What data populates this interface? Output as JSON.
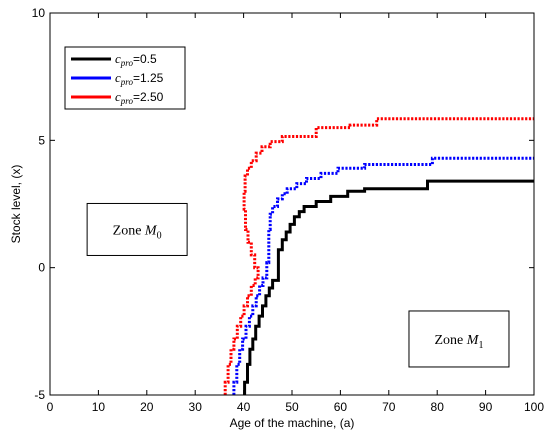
{
  "chart_data": {
    "type": "line",
    "xlabel": "Age of the machine, (a)",
    "ylabel": "Stock level, (x)",
    "xlim": [
      0,
      100
    ],
    "ylim": [
      -5,
      10
    ],
    "xticks": [
      0,
      10,
      20,
      30,
      40,
      50,
      60,
      70,
      80,
      90,
      100
    ],
    "yticks": [
      -5,
      0,
      5,
      10
    ],
    "grid": false,
    "legend_position": "top-left",
    "series": [
      {
        "name": "=0.5",
        "legend_symbol": "c",
        "legend_sub": "pro",
        "legend_suffix": "=0.5",
        "color": "#000000",
        "dash": "solid",
        "points": [
          [
            40.2,
            -5.0
          ],
          [
            40.2,
            -4.5
          ],
          [
            40.8,
            -4.5
          ],
          [
            40.8,
            -3.8
          ],
          [
            41.3,
            -3.8
          ],
          [
            41.3,
            -3.2
          ],
          [
            41.9,
            -3.2
          ],
          [
            41.9,
            -2.8
          ],
          [
            42.5,
            -2.8
          ],
          [
            42.5,
            -2.3
          ],
          [
            43.2,
            -2.3
          ],
          [
            43.2,
            -1.9
          ],
          [
            43.9,
            -1.9
          ],
          [
            43.9,
            -1.5
          ],
          [
            44.6,
            -1.5
          ],
          [
            44.6,
            -1.1
          ],
          [
            45.3,
            -1.1
          ],
          [
            45.3,
            -0.8
          ],
          [
            46.0,
            -0.8
          ],
          [
            46.0,
            -0.5
          ],
          [
            47.2,
            -0.5
          ],
          [
            47.2,
            0.7
          ],
          [
            48.0,
            0.7
          ],
          [
            48.0,
            1.1
          ],
          [
            48.8,
            1.1
          ],
          [
            48.8,
            1.4
          ],
          [
            49.6,
            1.4
          ],
          [
            49.6,
            1.7
          ],
          [
            50.5,
            1.7
          ],
          [
            50.5,
            2.0
          ],
          [
            51.5,
            2.0
          ],
          [
            51.5,
            2.2
          ],
          [
            52.5,
            2.2
          ],
          [
            52.5,
            2.4
          ],
          [
            55.0,
            2.4
          ],
          [
            55.0,
            2.6
          ],
          [
            58.0,
            2.6
          ],
          [
            58.0,
            2.8
          ],
          [
            61.5,
            2.8
          ],
          [
            61.5,
            3.0
          ],
          [
            65.0,
            3.0
          ],
          [
            65.0,
            3.1
          ],
          [
            78.0,
            3.1
          ],
          [
            78.0,
            3.4
          ],
          [
            100.0,
            3.4
          ]
        ]
      },
      {
        "name": "=1.25",
        "legend_symbol": "c",
        "legend_sub": "pro",
        "legend_suffix": "=1.25",
        "color": "#0000ff",
        "dash": "dotted",
        "points": [
          [
            38.0,
            -5.0
          ],
          [
            38.0,
            -4.5
          ],
          [
            38.6,
            -4.5
          ],
          [
            38.6,
            -3.8
          ],
          [
            39.2,
            -3.8
          ],
          [
            39.2,
            -3.2
          ],
          [
            39.8,
            -3.2
          ],
          [
            39.8,
            -2.8
          ],
          [
            40.5,
            -2.8
          ],
          [
            40.5,
            -2.3
          ],
          [
            41.2,
            -2.3
          ],
          [
            41.2,
            -1.9
          ],
          [
            41.9,
            -1.9
          ],
          [
            41.9,
            -1.5
          ],
          [
            42.6,
            -1.5
          ],
          [
            42.6,
            -1.1
          ],
          [
            43.3,
            -1.1
          ],
          [
            43.3,
            -0.7
          ],
          [
            44.0,
            -0.7
          ],
          [
            44.0,
            -0.4
          ],
          [
            44.8,
            -0.4
          ],
          [
            44.8,
            0.2
          ],
          [
            45.2,
            0.2
          ],
          [
            45.2,
            1.5
          ],
          [
            45.5,
            1.5
          ],
          [
            45.5,
            2.1
          ],
          [
            46.0,
            2.1
          ],
          [
            46.0,
            2.4
          ],
          [
            47.0,
            2.4
          ],
          [
            47.0,
            2.7
          ],
          [
            48.0,
            2.7
          ],
          [
            48.0,
            2.9
          ],
          [
            49.0,
            2.9
          ],
          [
            49.0,
            3.1
          ],
          [
            51.0,
            3.1
          ],
          [
            51.0,
            3.3
          ],
          [
            53.0,
            3.3
          ],
          [
            53.0,
            3.5
          ],
          [
            56.0,
            3.5
          ],
          [
            56.0,
            3.7
          ],
          [
            59.5,
            3.7
          ],
          [
            59.5,
            3.9
          ],
          [
            65.0,
            3.9
          ],
          [
            65.0,
            4.05
          ],
          [
            79.0,
            4.05
          ],
          [
            79.0,
            4.3
          ],
          [
            100.0,
            4.3
          ]
        ]
      },
      {
        "name": "=2.50",
        "legend_symbol": "c",
        "legend_sub": "pro",
        "legend_suffix": "=2.50",
        "color": "#ff0000",
        "dash": "dotted",
        "points": [
          [
            36.2,
            -5.0
          ],
          [
            36.2,
            -4.5
          ],
          [
            36.8,
            -4.5
          ],
          [
            36.8,
            -3.8
          ],
          [
            37.4,
            -3.8
          ],
          [
            37.4,
            -3.2
          ],
          [
            38.0,
            -3.2
          ],
          [
            38.0,
            -2.8
          ],
          [
            38.7,
            -2.8
          ],
          [
            38.7,
            -2.3
          ],
          [
            39.4,
            -2.3
          ],
          [
            39.4,
            -1.9
          ],
          [
            40.1,
            -1.9
          ],
          [
            40.1,
            -1.5
          ],
          [
            40.8,
            -1.5
          ],
          [
            40.8,
            -1.1
          ],
          [
            41.6,
            -1.1
          ],
          [
            41.6,
            -0.7
          ],
          [
            42.4,
            -0.7
          ],
          [
            42.4,
            -0.4
          ],
          [
            43.0,
            -0.4
          ],
          [
            43.0,
            0.0
          ],
          [
            42.3,
            0.0
          ],
          [
            42.3,
            0.5
          ],
          [
            41.6,
            0.5
          ],
          [
            41.6,
            1.0
          ],
          [
            40.9,
            1.0
          ],
          [
            40.9,
            1.5
          ],
          [
            40.4,
            1.5
          ],
          [
            40.4,
            2.3
          ],
          [
            40.1,
            2.3
          ],
          [
            40.1,
            3.0
          ],
          [
            40.3,
            3.0
          ],
          [
            40.3,
            3.6
          ],
          [
            40.8,
            3.6
          ],
          [
            40.8,
            3.9
          ],
          [
            41.6,
            3.9
          ],
          [
            41.6,
            4.2
          ],
          [
            42.6,
            4.2
          ],
          [
            42.6,
            4.5
          ],
          [
            43.8,
            4.5
          ],
          [
            43.8,
            4.75
          ],
          [
            45.5,
            4.75
          ],
          [
            45.5,
            4.95
          ],
          [
            48.0,
            4.95
          ],
          [
            48.0,
            5.15
          ],
          [
            55.0,
            5.15
          ],
          [
            55.0,
            5.5
          ],
          [
            62.0,
            5.5
          ],
          [
            62.0,
            5.6
          ],
          [
            67.5,
            5.6
          ],
          [
            67.5,
            5.85
          ],
          [
            100.0,
            5.85
          ]
        ]
      }
    ],
    "annotations": [
      {
        "label": "Zone",
        "symbol": "M",
        "sub": "0",
        "x": 18,
        "y": 1.5
      },
      {
        "label": "Zone",
        "symbol": "M",
        "sub": "1",
        "x": 84.5,
        "y": -2.8
      }
    ]
  }
}
